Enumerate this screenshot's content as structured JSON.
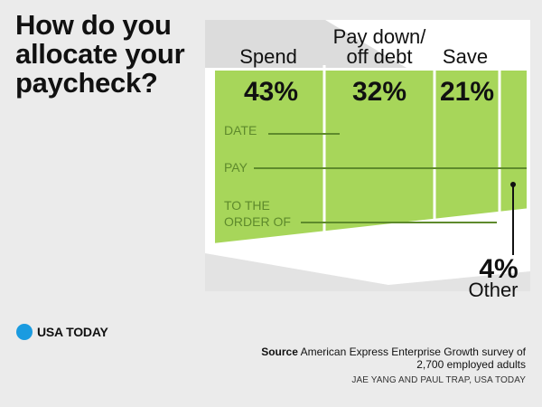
{
  "headline": {
    "line1": "How do you",
    "line2": "allocate your",
    "line3": "paycheck?"
  },
  "chart_data": {
    "type": "bar",
    "title": "How do you allocate your paycheck?",
    "unit": "%",
    "categories": [
      "Spend",
      "Pay down/ off debt",
      "Save",
      "Other"
    ],
    "values": [
      43,
      32,
      21,
      4
    ],
    "value_labels": [
      "43%",
      "32%",
      "21%",
      "4%"
    ],
    "category_lines": [
      [
        "Spend"
      ],
      [
        "Pay down/",
        "off debt"
      ],
      [
        "Save"
      ],
      [
        "Other"
      ]
    ]
  },
  "check": {
    "date_label": "DATE",
    "pay_label": "PAY",
    "order_line1": "TO THE",
    "order_line2": "ORDER OF"
  },
  "brand": {
    "name": "USA TODAY"
  },
  "source": {
    "label": "Source",
    "text": "American Express Enterprise Growth survey of 2,700 employed adults"
  },
  "credit": "JAE YANG AND PAUL TRAP, USA TODAY",
  "colors": {
    "check_green": "#a7d65a",
    "divider": "#ffffff",
    "ink": "#111111",
    "brand_blue": "#1a9be0"
  }
}
